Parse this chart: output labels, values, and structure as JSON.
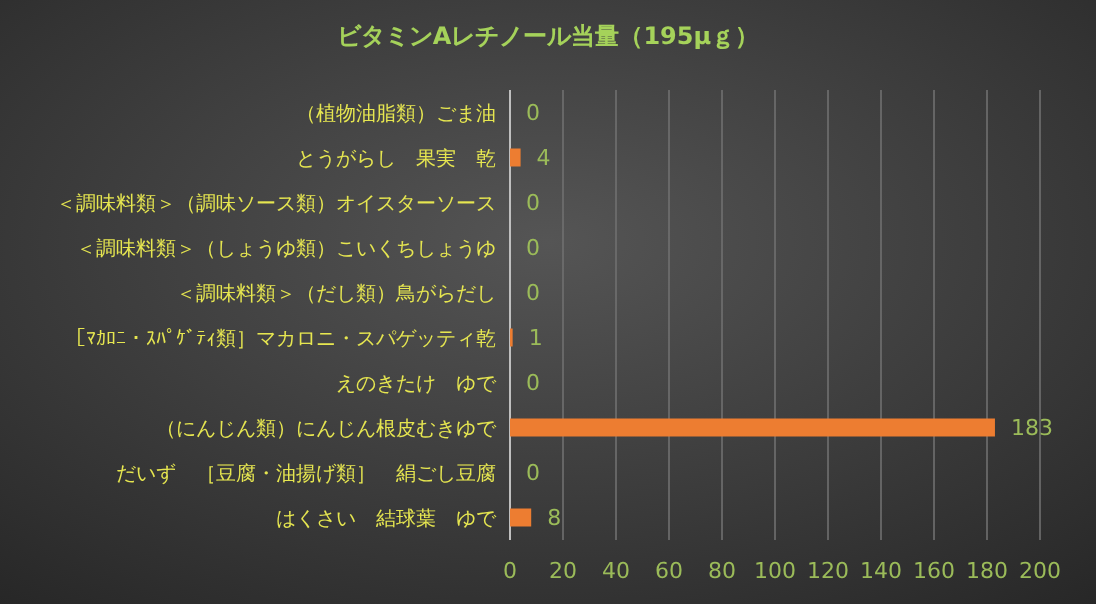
{
  "chart_data": {
    "type": "bar",
    "orientation": "horizontal",
    "title": "ビタミンAレチノール当量（195μｇ）",
    "categories": [
      "（植物油脂類）ごま油",
      "とうがらし　果実　乾",
      "＜調味料類＞（調味ソース類）オイスターソース",
      "＜調味料類＞（しょうゆ類）こいくちしょうゆ",
      "＜調味料類＞（だし類）鳥がらだし",
      "［ﾏｶﾛﾆ・ｽﾊﾟｹﾞﾃｨ類］マカロニ・スパゲッティ乾",
      "えのきたけ　ゆで",
      "（にんじん類）にんじん根皮むきゆで",
      "だいず　［豆腐・油揚げ類］　絹ごし豆腐",
      "はくさい　結球葉　ゆで"
    ],
    "values": [
      0,
      4,
      0,
      0,
      0,
      1,
      0,
      183,
      0,
      8
    ],
    "color": "#ed7d31",
    "xlim": [
      0,
      200
    ],
    "xticks": [
      0,
      20,
      40,
      60,
      80,
      100,
      120,
      140,
      160,
      180,
      200
    ],
    "grid": "x",
    "data_labels": true
  }
}
